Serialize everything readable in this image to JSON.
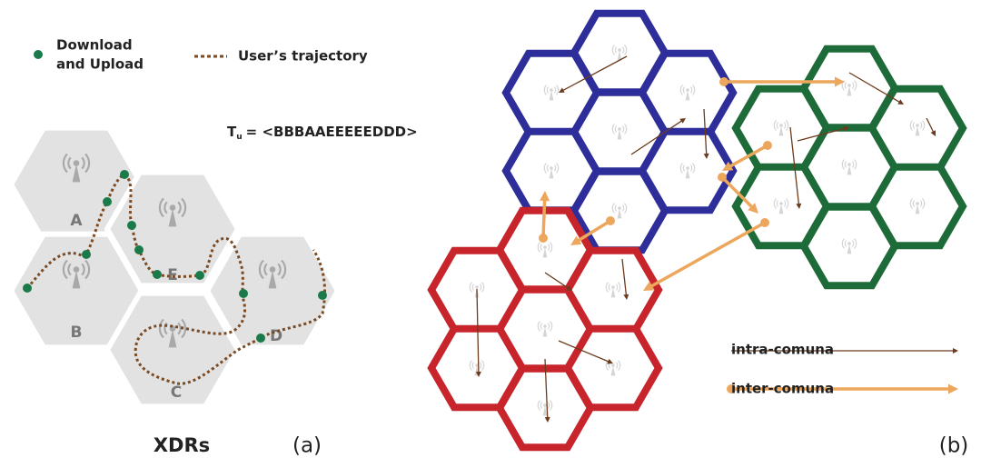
{
  "legend": {
    "download_upload": [
      "Download",
      "and Upload"
    ],
    "trajectory": "User’s trajectory"
  },
  "sequence": {
    "symbol": "T",
    "subscript": "u",
    "value": "= <BBBAAEEEEEDDD>"
  },
  "cells": [
    "A",
    "B",
    "E",
    "D",
    "C"
  ],
  "caption_a": "XDRs",
  "panel_a": "(a)",
  "panel_b": "(b)",
  "legend_b": {
    "intra": "intra-comuna",
    "inter": "inter-comuna"
  }
}
